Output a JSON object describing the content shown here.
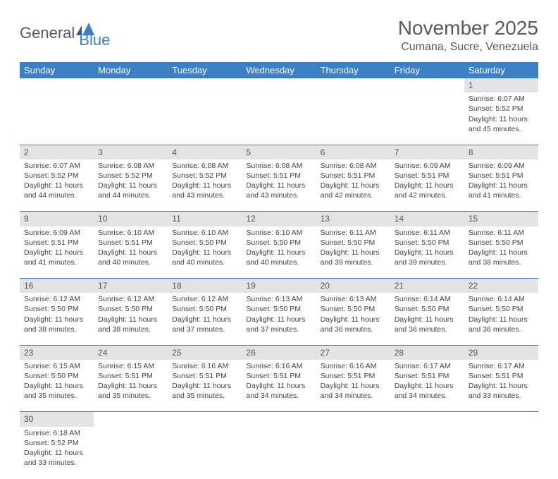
{
  "brand": {
    "part1": "General",
    "part2": "Blue"
  },
  "title": "November 2025",
  "location": "Cumana, Sucre, Venezuela",
  "weekdays": [
    "Sunday",
    "Monday",
    "Tuesday",
    "Wednesday",
    "Thursday",
    "Friday",
    "Saturday"
  ],
  "colors": {
    "header_bg": "#3b7fc4",
    "header_text": "#ffffff",
    "daynum_bg": "#e3e3e3",
    "cell_border": "#3b7fc4",
    "text": "#444444"
  },
  "weeks": [
    [
      null,
      null,
      null,
      null,
      null,
      null,
      {
        "n": "1",
        "sunrise": "Sunrise: 6:07 AM",
        "sunset": "Sunset: 5:52 PM",
        "day1": "Daylight: 11 hours",
        "day2": "and 45 minutes."
      }
    ],
    [
      {
        "n": "2",
        "sunrise": "Sunrise: 6:07 AM",
        "sunset": "Sunset: 5:52 PM",
        "day1": "Daylight: 11 hours",
        "day2": "and 44 minutes."
      },
      {
        "n": "3",
        "sunrise": "Sunrise: 6:08 AM",
        "sunset": "Sunset: 5:52 PM",
        "day1": "Daylight: 11 hours",
        "day2": "and 44 minutes."
      },
      {
        "n": "4",
        "sunrise": "Sunrise: 6:08 AM",
        "sunset": "Sunset: 5:52 PM",
        "day1": "Daylight: 11 hours",
        "day2": "and 43 minutes."
      },
      {
        "n": "5",
        "sunrise": "Sunrise: 6:08 AM",
        "sunset": "Sunset: 5:51 PM",
        "day1": "Daylight: 11 hours",
        "day2": "and 43 minutes."
      },
      {
        "n": "6",
        "sunrise": "Sunrise: 6:08 AM",
        "sunset": "Sunset: 5:51 PM",
        "day1": "Daylight: 11 hours",
        "day2": "and 42 minutes."
      },
      {
        "n": "7",
        "sunrise": "Sunrise: 6:09 AM",
        "sunset": "Sunset: 5:51 PM",
        "day1": "Daylight: 11 hours",
        "day2": "and 42 minutes."
      },
      {
        "n": "8",
        "sunrise": "Sunrise: 6:09 AM",
        "sunset": "Sunset: 5:51 PM",
        "day1": "Daylight: 11 hours",
        "day2": "and 41 minutes."
      }
    ],
    [
      {
        "n": "9",
        "sunrise": "Sunrise: 6:09 AM",
        "sunset": "Sunset: 5:51 PM",
        "day1": "Daylight: 11 hours",
        "day2": "and 41 minutes."
      },
      {
        "n": "10",
        "sunrise": "Sunrise: 6:10 AM",
        "sunset": "Sunset: 5:51 PM",
        "day1": "Daylight: 11 hours",
        "day2": "and 40 minutes."
      },
      {
        "n": "11",
        "sunrise": "Sunrise: 6:10 AM",
        "sunset": "Sunset: 5:50 PM",
        "day1": "Daylight: 11 hours",
        "day2": "and 40 minutes."
      },
      {
        "n": "12",
        "sunrise": "Sunrise: 6:10 AM",
        "sunset": "Sunset: 5:50 PM",
        "day1": "Daylight: 11 hours",
        "day2": "and 40 minutes."
      },
      {
        "n": "13",
        "sunrise": "Sunrise: 6:11 AM",
        "sunset": "Sunset: 5:50 PM",
        "day1": "Daylight: 11 hours",
        "day2": "and 39 minutes."
      },
      {
        "n": "14",
        "sunrise": "Sunrise: 6:11 AM",
        "sunset": "Sunset: 5:50 PM",
        "day1": "Daylight: 11 hours",
        "day2": "and 39 minutes."
      },
      {
        "n": "15",
        "sunrise": "Sunrise: 6:11 AM",
        "sunset": "Sunset: 5:50 PM",
        "day1": "Daylight: 11 hours",
        "day2": "and 38 minutes."
      }
    ],
    [
      {
        "n": "16",
        "sunrise": "Sunrise: 6:12 AM",
        "sunset": "Sunset: 5:50 PM",
        "day1": "Daylight: 11 hours",
        "day2": "and 38 minutes."
      },
      {
        "n": "17",
        "sunrise": "Sunrise: 6:12 AM",
        "sunset": "Sunset: 5:50 PM",
        "day1": "Daylight: 11 hours",
        "day2": "and 38 minutes."
      },
      {
        "n": "18",
        "sunrise": "Sunrise: 6:12 AM",
        "sunset": "Sunset: 5:50 PM",
        "day1": "Daylight: 11 hours",
        "day2": "and 37 minutes."
      },
      {
        "n": "19",
        "sunrise": "Sunrise: 6:13 AM",
        "sunset": "Sunset: 5:50 PM",
        "day1": "Daylight: 11 hours",
        "day2": "and 37 minutes."
      },
      {
        "n": "20",
        "sunrise": "Sunrise: 6:13 AM",
        "sunset": "Sunset: 5:50 PM",
        "day1": "Daylight: 11 hours",
        "day2": "and 36 minutes."
      },
      {
        "n": "21",
        "sunrise": "Sunrise: 6:14 AM",
        "sunset": "Sunset: 5:50 PM",
        "day1": "Daylight: 11 hours",
        "day2": "and 36 minutes."
      },
      {
        "n": "22",
        "sunrise": "Sunrise: 6:14 AM",
        "sunset": "Sunset: 5:50 PM",
        "day1": "Daylight: 11 hours",
        "day2": "and 36 minutes."
      }
    ],
    [
      {
        "n": "23",
        "sunrise": "Sunrise: 6:15 AM",
        "sunset": "Sunset: 5:50 PM",
        "day1": "Daylight: 11 hours",
        "day2": "and 35 minutes."
      },
      {
        "n": "24",
        "sunrise": "Sunrise: 6:15 AM",
        "sunset": "Sunset: 5:51 PM",
        "day1": "Daylight: 11 hours",
        "day2": "and 35 minutes."
      },
      {
        "n": "25",
        "sunrise": "Sunrise: 6:16 AM",
        "sunset": "Sunset: 5:51 PM",
        "day1": "Daylight: 11 hours",
        "day2": "and 35 minutes."
      },
      {
        "n": "26",
        "sunrise": "Sunrise: 6:16 AM",
        "sunset": "Sunset: 5:51 PM",
        "day1": "Daylight: 11 hours",
        "day2": "and 34 minutes."
      },
      {
        "n": "27",
        "sunrise": "Sunrise: 6:16 AM",
        "sunset": "Sunset: 5:51 PM",
        "day1": "Daylight: 11 hours",
        "day2": "and 34 minutes."
      },
      {
        "n": "28",
        "sunrise": "Sunrise: 6:17 AM",
        "sunset": "Sunset: 5:51 PM",
        "day1": "Daylight: 11 hours",
        "day2": "and 34 minutes."
      },
      {
        "n": "29",
        "sunrise": "Sunrise: 6:17 AM",
        "sunset": "Sunset: 5:51 PM",
        "day1": "Daylight: 11 hours",
        "day2": "and 33 minutes."
      }
    ],
    [
      {
        "n": "30",
        "sunrise": "Sunrise: 6:18 AM",
        "sunset": "Sunset: 5:52 PM",
        "day1": "Daylight: 11 hours",
        "day2": "and 33 minutes."
      },
      null,
      null,
      null,
      null,
      null,
      null
    ]
  ]
}
